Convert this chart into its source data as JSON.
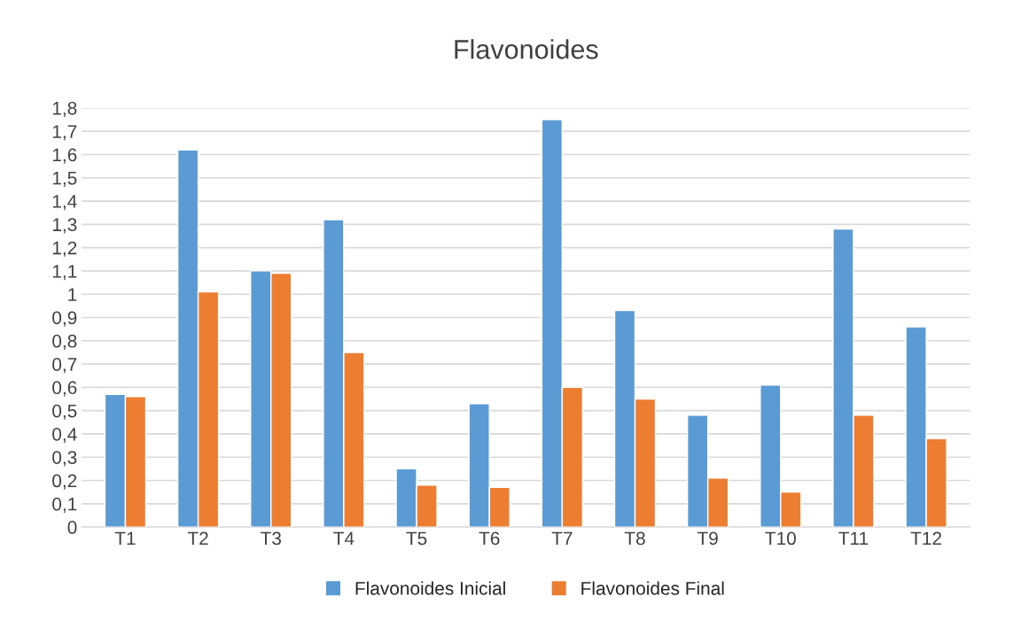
{
  "chart_data": {
    "type": "bar",
    "title": "Flavonoides",
    "categories": [
      "T1",
      "T2",
      "T3",
      "T4",
      "T5",
      "T6",
      "T7",
      "T8",
      "T9",
      "T10",
      "T11",
      "T12"
    ],
    "series": [
      {
        "name": "Flavonoides Inicial",
        "color": "#5b9bd5",
        "values": [
          0.57,
          1.62,
          1.1,
          1.32,
          0.25,
          0.53,
          1.75,
          0.93,
          0.48,
          0.61,
          1.28,
          0.86
        ]
      },
      {
        "name": "Flavonoides Final",
        "color": "#ed7d31",
        "values": [
          0.56,
          1.01,
          1.09,
          0.75,
          0.18,
          0.17,
          0.6,
          0.55,
          0.21,
          0.15,
          0.48,
          0.38
        ]
      }
    ],
    "ylim": [
      0,
      1.8
    ],
    "yticks": [
      0,
      {
        "value": 0.1,
        "label": "0,1"
      },
      {
        "value": 0.2,
        "label": "0,2"
      },
      {
        "value": 0.3,
        "label": "0,3"
      },
      {
        "value": 0.4,
        "label": "0,4"
      },
      {
        "value": 0.5,
        "label": "0,5"
      },
      {
        "value": 0.6,
        "label": "0,6"
      },
      {
        "value": 0.7,
        "label": "0,7"
      },
      {
        "value": 0.8,
        "label": "0,8"
      },
      {
        "value": 0.9,
        "label": "0,9"
      },
      1,
      {
        "value": 1.1,
        "label": "1,1"
      },
      {
        "value": 1.2,
        "label": "1,2"
      },
      {
        "value": 1.3,
        "label": "1,3"
      },
      {
        "value": 1.4,
        "label": "1,4"
      },
      {
        "value": 1.5,
        "label": "1,5"
      },
      {
        "value": 1.6,
        "label": "1,6"
      },
      {
        "value": 1.7,
        "label": "1,7"
      },
      {
        "value": 1.8,
        "label": "1,8"
      }
    ],
    "grid": "y",
    "legend": "bottom"
  }
}
